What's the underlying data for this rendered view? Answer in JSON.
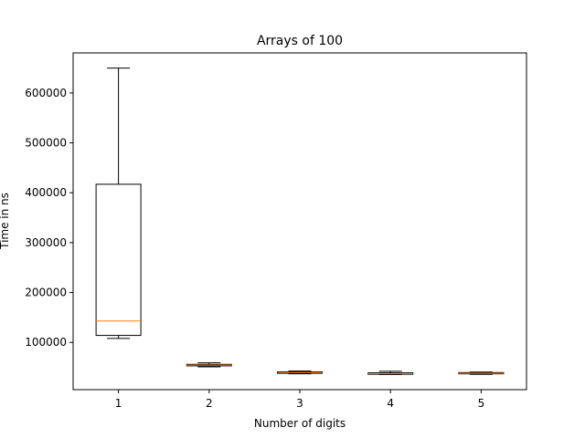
{
  "chart_data": {
    "type": "box",
    "title": "Arrays of 100",
    "xlabel": "Number of digits",
    "ylabel": "Time in ns",
    "categories": [
      "1",
      "2",
      "3",
      "4",
      "5"
    ],
    "boxes": [
      {
        "category": "1",
        "whisker_low": 108000,
        "q1": 114000,
        "median": 143000,
        "q3": 417000,
        "whisker_high": 650000
      },
      {
        "category": "2",
        "whisker_low": 51000,
        "q1": 53000,
        "median": 54500,
        "q3": 56000,
        "whisker_high": 59000
      },
      {
        "category": "3",
        "whisker_low": 37000,
        "q1": 38000,
        "median": 39500,
        "q3": 41000,
        "whisker_high": 42500
      },
      {
        "category": "4",
        "whisker_low": 35500,
        "q1": 36000,
        "median": 37000,
        "q3": 39000,
        "whisker_high": 42000
      },
      {
        "category": "5",
        "whisker_low": 36000,
        "q1": 37000,
        "median": 38000,
        "q3": 39500,
        "whisker_high": 40500
      }
    ],
    "yticks": [
      100000,
      200000,
      300000,
      400000,
      500000,
      600000
    ],
    "ytick_labels": [
      "100000",
      "200000",
      "300000",
      "400000",
      "500000",
      "600000"
    ],
    "ylim": [
      5300,
      680300
    ],
    "grid": false,
    "colors": {
      "box": "#000000",
      "median": "#ff7f0e"
    }
  }
}
